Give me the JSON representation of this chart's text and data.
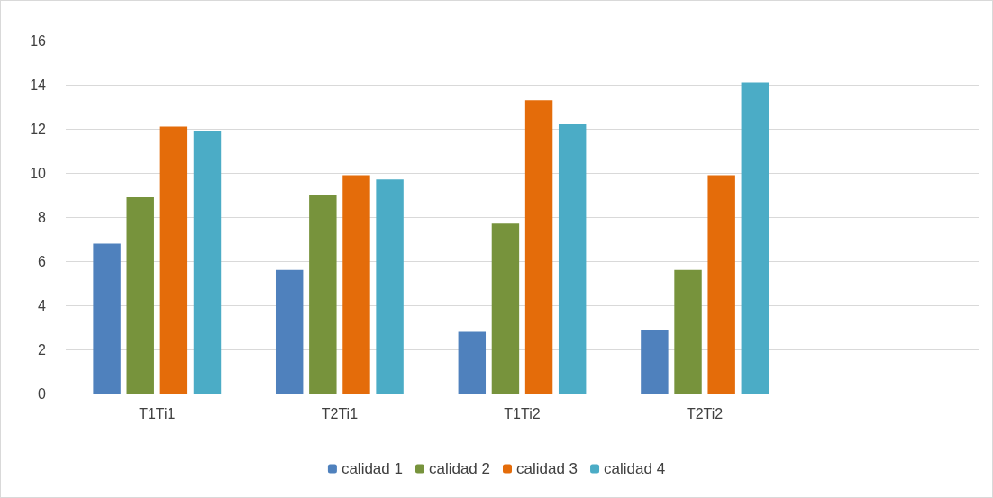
{
  "chart_data": {
    "type": "bar",
    "categories": [
      "T1Ti1",
      "T2Ti1",
      "T1Ti2",
      "T2Ti2",
      null
    ],
    "series": [
      {
        "name": "calidad 1",
        "color": "#4f81bd",
        "values": [
          6.8,
          5.6,
          2.8,
          2.9,
          null
        ]
      },
      {
        "name": "calidad 2",
        "color": "#77933c",
        "values": [
          8.9,
          9.0,
          7.7,
          5.6,
          null
        ]
      },
      {
        "name": "calidad 3",
        "color": "#e46c0a",
        "values": [
          12.1,
          9.9,
          13.3,
          9.9,
          null
        ]
      },
      {
        "name": "calidad 4",
        "color": "#4bacc6",
        "values": [
          11.9,
          9.7,
          12.2,
          14.1,
          null
        ]
      }
    ],
    "ylim": [
      0,
      16
    ],
    "yticks": [
      0,
      2,
      4,
      6,
      8,
      10,
      12,
      14,
      16
    ],
    "grid": "y",
    "legend": "bottom"
  }
}
